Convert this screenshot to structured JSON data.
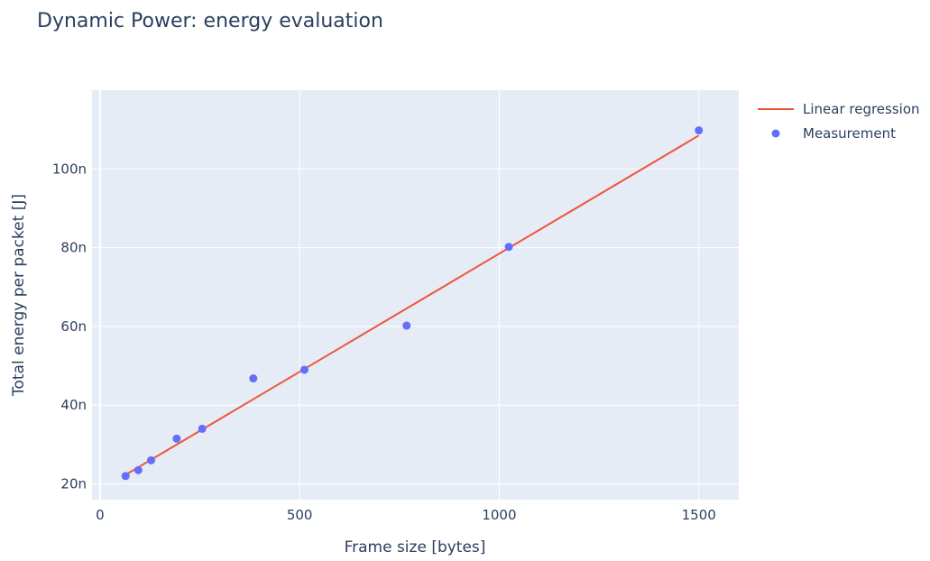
{
  "chart_data": {
    "type": "scatter",
    "title": "Dynamic Power: energy evaluation",
    "xlabel": "Frame size [bytes]",
    "ylabel": "Total energy per packet [J]",
    "xlim": [
      -20,
      1600
    ],
    "ylim": [
      16,
      120
    ],
    "x_ticks": [
      0,
      500,
      1000,
      1500
    ],
    "x_tick_labels": [
      "0",
      "500",
      "1000",
      "1500"
    ],
    "y_ticks": [
      20,
      40,
      60,
      80,
      100
    ],
    "y_tick_labels": [
      "20n",
      "40n",
      "60n",
      "80n",
      "100n"
    ],
    "grid": true,
    "legend_position": "top-right",
    "series": [
      {
        "name": "Linear regression",
        "mode": "line",
        "color": "#ef553b",
        "x": [
          64,
          1500
        ],
        "y": [
          22.3,
          108.5
        ]
      },
      {
        "name": "Measurement",
        "mode": "markers",
        "color": "#636efa",
        "x": [
          64,
          96,
          128,
          192,
          256,
          384,
          512,
          768,
          1024,
          1500
        ],
        "y": [
          22.0,
          23.5,
          26.0,
          31.5,
          34.0,
          46.8,
          49.0,
          60.2,
          80.2,
          109.8
        ]
      }
    ]
  }
}
